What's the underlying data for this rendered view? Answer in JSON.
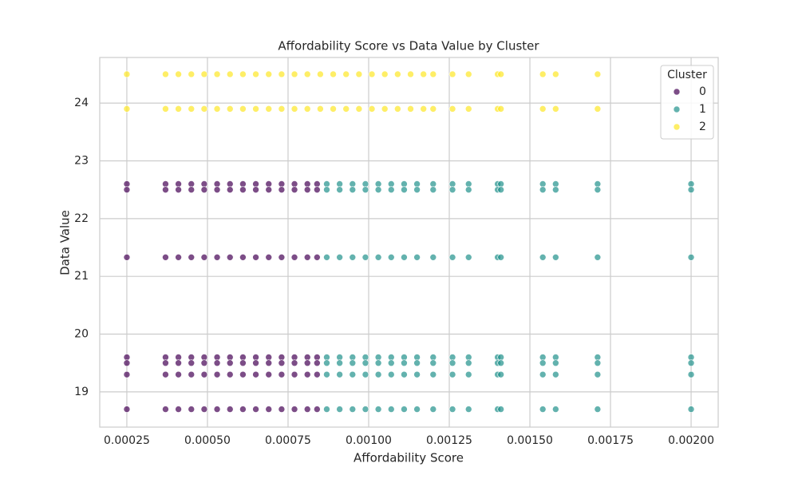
{
  "chart_data": {
    "type": "scatter",
    "title": "Affordability Score vs Data Value by Cluster",
    "x_label": "Affordability Score",
    "y_label": "Data Value",
    "legend_title": "Cluster",
    "legend": "upper right",
    "grid": true,
    "xlim": [
      0.000166,
      0.002084
    ],
    "ylim": [
      18.39,
      24.79
    ],
    "xticks": [
      0.00025,
      {
        "value": 0.0005,
        "label": "0.00050"
      },
      0.00075,
      {
        "value": 0.001,
        "label": "0.00100"
      },
      0.00125,
      {
        "value": 0.0015,
        "label": "0.00150"
      },
      0.00175,
      {
        "value": 0.002,
        "label": "0.00200"
      }
    ],
    "yticks": [
      19,
      20,
      21,
      22,
      23,
      24
    ],
    "series": [
      {
        "name": "0",
        "color": "#440154",
        "x": [
          0.00025,
          0.00037,
          0.00041,
          0.00045,
          0.00049,
          0.00053,
          0.00057,
          0.00061,
          0.00065,
          0.00069,
          0.00073,
          0.00077,
          0.00081,
          0.00084,
          0.00025,
          0.00037,
          0.00041,
          0.00045,
          0.00049,
          0.00053,
          0.00057,
          0.00061,
          0.00065,
          0.00069,
          0.00073,
          0.00077,
          0.00081,
          0.00084,
          0.00025,
          0.00037,
          0.00041,
          0.00045,
          0.00049,
          0.00053,
          0.00057,
          0.00061,
          0.00065,
          0.00069,
          0.00073,
          0.00077,
          0.00081,
          0.00084,
          0.00025,
          0.00037,
          0.00041,
          0.00045,
          0.00049,
          0.00053,
          0.00057,
          0.00061,
          0.00065,
          0.00069,
          0.00073,
          0.00077,
          0.00081,
          0.00084,
          0.00025,
          0.00037,
          0.00041,
          0.00045,
          0.00049,
          0.00053,
          0.00057,
          0.00061,
          0.00065,
          0.00069,
          0.00073,
          0.00077,
          0.00081,
          0.00084,
          0.00025,
          0.00037,
          0.00041,
          0.00045,
          0.00049,
          0.00053,
          0.00057,
          0.00061,
          0.00065,
          0.00069,
          0.00073,
          0.00077,
          0.00081,
          0.00084,
          0.00025,
          0.00037,
          0.00041,
          0.00045,
          0.00049,
          0.00053,
          0.00057,
          0.00061,
          0.00065,
          0.00069,
          0.00073,
          0.00077,
          0.00081,
          0.00084
        ],
        "values": [
          22.6,
          22.6,
          22.6,
          22.6,
          22.6,
          22.6,
          22.6,
          22.6,
          22.6,
          22.6,
          22.6,
          22.6,
          22.6,
          22.6,
          22.5,
          22.5,
          22.5,
          22.5,
          22.5,
          22.5,
          22.5,
          22.5,
          22.5,
          22.5,
          22.5,
          22.5,
          22.5,
          22.5,
          21.33,
          21.33,
          21.33,
          21.33,
          21.33,
          21.33,
          21.33,
          21.33,
          21.33,
          21.33,
          21.33,
          21.33,
          21.33,
          21.33,
          19.6,
          19.6,
          19.6,
          19.6,
          19.6,
          19.6,
          19.6,
          19.6,
          19.6,
          19.6,
          19.6,
          19.6,
          19.6,
          19.6,
          19.5,
          19.5,
          19.5,
          19.5,
          19.5,
          19.5,
          19.5,
          19.5,
          19.5,
          19.5,
          19.5,
          19.5,
          19.5,
          19.5,
          19.3,
          19.3,
          19.3,
          19.3,
          19.3,
          19.3,
          19.3,
          19.3,
          19.3,
          19.3,
          19.3,
          19.3,
          19.3,
          19.3,
          18.7,
          18.7,
          18.7,
          18.7,
          18.7,
          18.7,
          18.7,
          18.7,
          18.7,
          18.7,
          18.7,
          18.7,
          18.7,
          18.7
        ]
      },
      {
        "name": "1",
        "color": "#21918c",
        "x": [
          0.00087,
          0.00091,
          0.00095,
          0.00099,
          0.00103,
          0.00107,
          0.00111,
          0.00115,
          0.0012,
          0.00126,
          0.00131,
          0.0014,
          0.00141,
          0.00154,
          0.00158,
          0.00171,
          0.002,
          0.00087,
          0.00091,
          0.00095,
          0.00099,
          0.00103,
          0.00107,
          0.00111,
          0.00115,
          0.0012,
          0.00126,
          0.00131,
          0.0014,
          0.00141,
          0.00154,
          0.00158,
          0.00171,
          0.002,
          0.00087,
          0.00091,
          0.00095,
          0.00099,
          0.00103,
          0.00107,
          0.00111,
          0.00115,
          0.0012,
          0.00126,
          0.00131,
          0.0014,
          0.00141,
          0.00154,
          0.00158,
          0.00171,
          0.002,
          0.00087,
          0.00091,
          0.00095,
          0.00099,
          0.00103,
          0.00107,
          0.00111,
          0.00115,
          0.0012,
          0.00126,
          0.00131,
          0.0014,
          0.00141,
          0.00154,
          0.00158,
          0.00171,
          0.002,
          0.00087,
          0.00091,
          0.00095,
          0.00099,
          0.00103,
          0.00107,
          0.00111,
          0.00115,
          0.0012,
          0.00126,
          0.00131,
          0.0014,
          0.00141,
          0.00154,
          0.00158,
          0.00171,
          0.002,
          0.00087,
          0.00091,
          0.00095,
          0.00099,
          0.00103,
          0.00107,
          0.00111,
          0.00115,
          0.0012,
          0.00126,
          0.00131,
          0.0014,
          0.00141,
          0.00154,
          0.00158,
          0.00171,
          0.002,
          0.00087,
          0.00091,
          0.00095,
          0.00099,
          0.00103,
          0.00107,
          0.00111,
          0.00115,
          0.0012,
          0.00126,
          0.00131,
          0.0014,
          0.00141,
          0.00154,
          0.00158,
          0.00171,
          0.002
        ],
        "values": [
          22.6,
          22.6,
          22.6,
          22.6,
          22.6,
          22.6,
          22.6,
          22.6,
          22.6,
          22.6,
          22.6,
          22.6,
          22.6,
          22.6,
          22.6,
          22.6,
          22.6,
          22.5,
          22.5,
          22.5,
          22.5,
          22.5,
          22.5,
          22.5,
          22.5,
          22.5,
          22.5,
          22.5,
          22.5,
          22.5,
          22.5,
          22.5,
          22.5,
          22.5,
          21.33,
          21.33,
          21.33,
          21.33,
          21.33,
          21.33,
          21.33,
          21.33,
          21.33,
          21.33,
          21.33,
          21.33,
          21.33,
          21.33,
          21.33,
          21.33,
          21.33,
          19.6,
          19.6,
          19.6,
          19.6,
          19.6,
          19.6,
          19.6,
          19.6,
          19.6,
          19.6,
          19.6,
          19.6,
          19.6,
          19.6,
          19.6,
          19.6,
          19.6,
          19.5,
          19.5,
          19.5,
          19.5,
          19.5,
          19.5,
          19.5,
          19.5,
          19.5,
          19.5,
          19.5,
          19.5,
          19.5,
          19.5,
          19.5,
          19.5,
          19.5,
          19.3,
          19.3,
          19.3,
          19.3,
          19.3,
          19.3,
          19.3,
          19.3,
          19.3,
          19.3,
          19.3,
          19.3,
          19.3,
          19.3,
          19.3,
          19.3,
          19.3,
          18.7,
          18.7,
          18.7,
          18.7,
          18.7,
          18.7,
          18.7,
          18.7,
          18.7,
          18.7,
          18.7,
          18.7,
          18.7,
          18.7,
          18.7,
          18.7,
          18.7
        ]
      },
      {
        "name": "2",
        "color": "#fde725",
        "x": [
          0.00025,
          0.00037,
          0.00041,
          0.00045,
          0.00049,
          0.00053,
          0.00057,
          0.00061,
          0.00065,
          0.00069,
          0.00073,
          0.00077,
          0.00081,
          0.00085,
          0.00089,
          0.00093,
          0.00097,
          0.00101,
          0.00105,
          0.00109,
          0.00113,
          0.00117,
          0.0012,
          0.00126,
          0.00131,
          0.0014,
          0.00141,
          0.00154,
          0.00158,
          0.00171,
          0.00025,
          0.00037,
          0.00041,
          0.00045,
          0.00049,
          0.00053,
          0.00057,
          0.00061,
          0.00065,
          0.00069,
          0.00073,
          0.00077,
          0.00081,
          0.00085,
          0.00089,
          0.00093,
          0.00097,
          0.00101,
          0.00105,
          0.00109,
          0.00113,
          0.00117,
          0.0012,
          0.00126,
          0.00131,
          0.0014,
          0.00141,
          0.00154,
          0.00158,
          0.00171
        ],
        "values": [
          24.5,
          24.5,
          24.5,
          24.5,
          24.5,
          24.5,
          24.5,
          24.5,
          24.5,
          24.5,
          24.5,
          24.5,
          24.5,
          24.5,
          24.5,
          24.5,
          24.5,
          24.5,
          24.5,
          24.5,
          24.5,
          24.5,
          24.5,
          24.5,
          24.5,
          24.5,
          24.5,
          24.5,
          24.5,
          24.5,
          23.9,
          23.9,
          23.9,
          23.9,
          23.9,
          23.9,
          23.9,
          23.9,
          23.9,
          23.9,
          23.9,
          23.9,
          23.9,
          23.9,
          23.9,
          23.9,
          23.9,
          23.9,
          23.9,
          23.9,
          23.9,
          23.9,
          23.9,
          23.9,
          23.9,
          23.9,
          23.9,
          23.9,
          23.9,
          23.9
        ]
      }
    ]
  }
}
